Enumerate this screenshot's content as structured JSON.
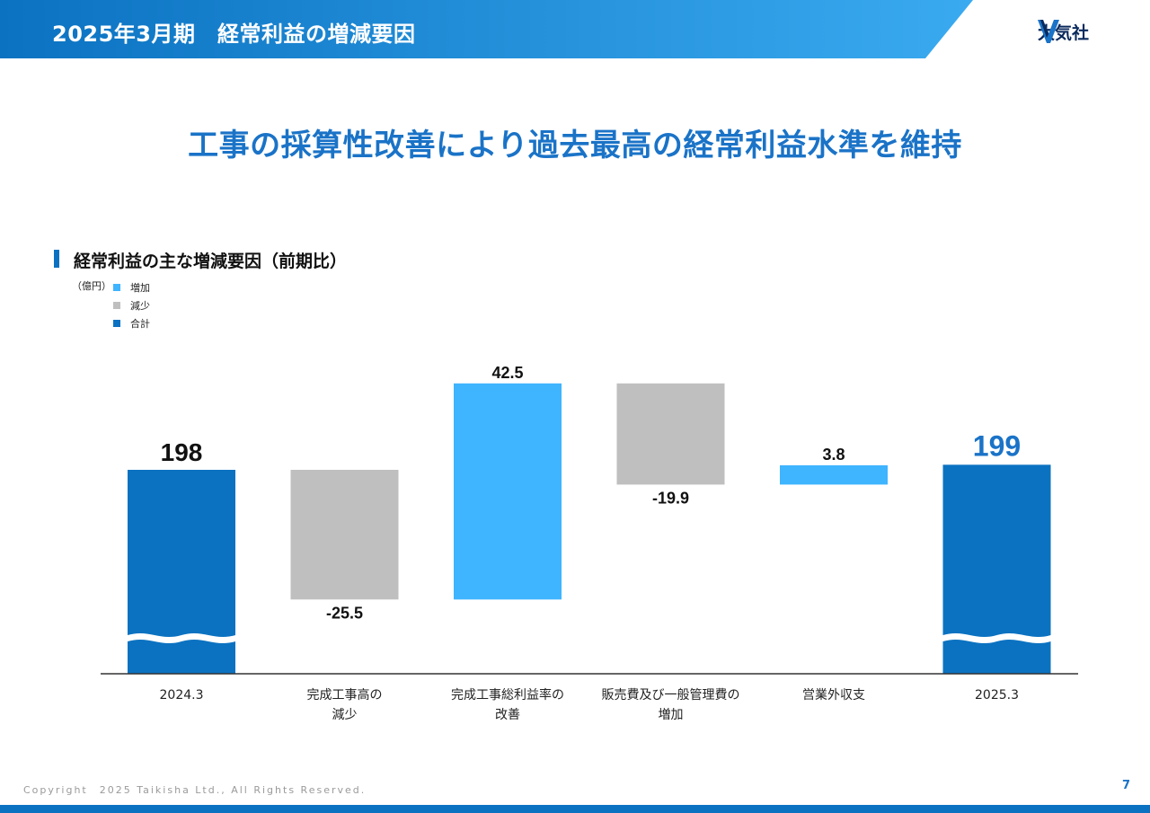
{
  "header": {
    "title": "2025年3月期　経常利益の増減要因",
    "logo_text": "大気社",
    "colors": {
      "start": "#0b72c1",
      "end": "#3aaaf0"
    }
  },
  "headline": "工事の採算性改善により過去最高の経常利益水準を維持",
  "section_title": "経常利益の主な増減要因（前期比）",
  "unit_label": "（億円）",
  "legend": [
    {
      "label": "増加",
      "color": "#3fb4ff"
    },
    {
      "label": "減少",
      "color": "#bfbfbf"
    },
    {
      "label": "合計",
      "color": "#0b72c1"
    }
  ],
  "chart_data": {
    "type": "bar",
    "subtype": "waterfall",
    "units": "億円",
    "axis_break": true,
    "categories": [
      [
        "2024.3"
      ],
      [
        "完成工事高の",
        "減少"
      ],
      [
        "完成工事総利益率の",
        "改善"
      ],
      [
        "販売費及び一般管理費の",
        "増加"
      ],
      [
        "営業外収支"
      ],
      [
        "2025.3"
      ]
    ],
    "values": [
      198,
      -25.5,
      42.5,
      -19.9,
      3.8,
      199
    ],
    "labels": [
      "198",
      "-25.5",
      "42.5",
      "-19.9",
      "3.8",
      "199"
    ],
    "kinds": [
      "total",
      "decrease",
      "increase",
      "decrease",
      "increase",
      "total"
    ],
    "colors": {
      "increase": "#3fb4ff",
      "decrease": "#bfbfbf",
      "total": "#0b72c1"
    }
  },
  "footer": {
    "copyright": "Copyright　2025 Taikisha Ltd., All Rights Reserved.",
    "page": "7"
  }
}
